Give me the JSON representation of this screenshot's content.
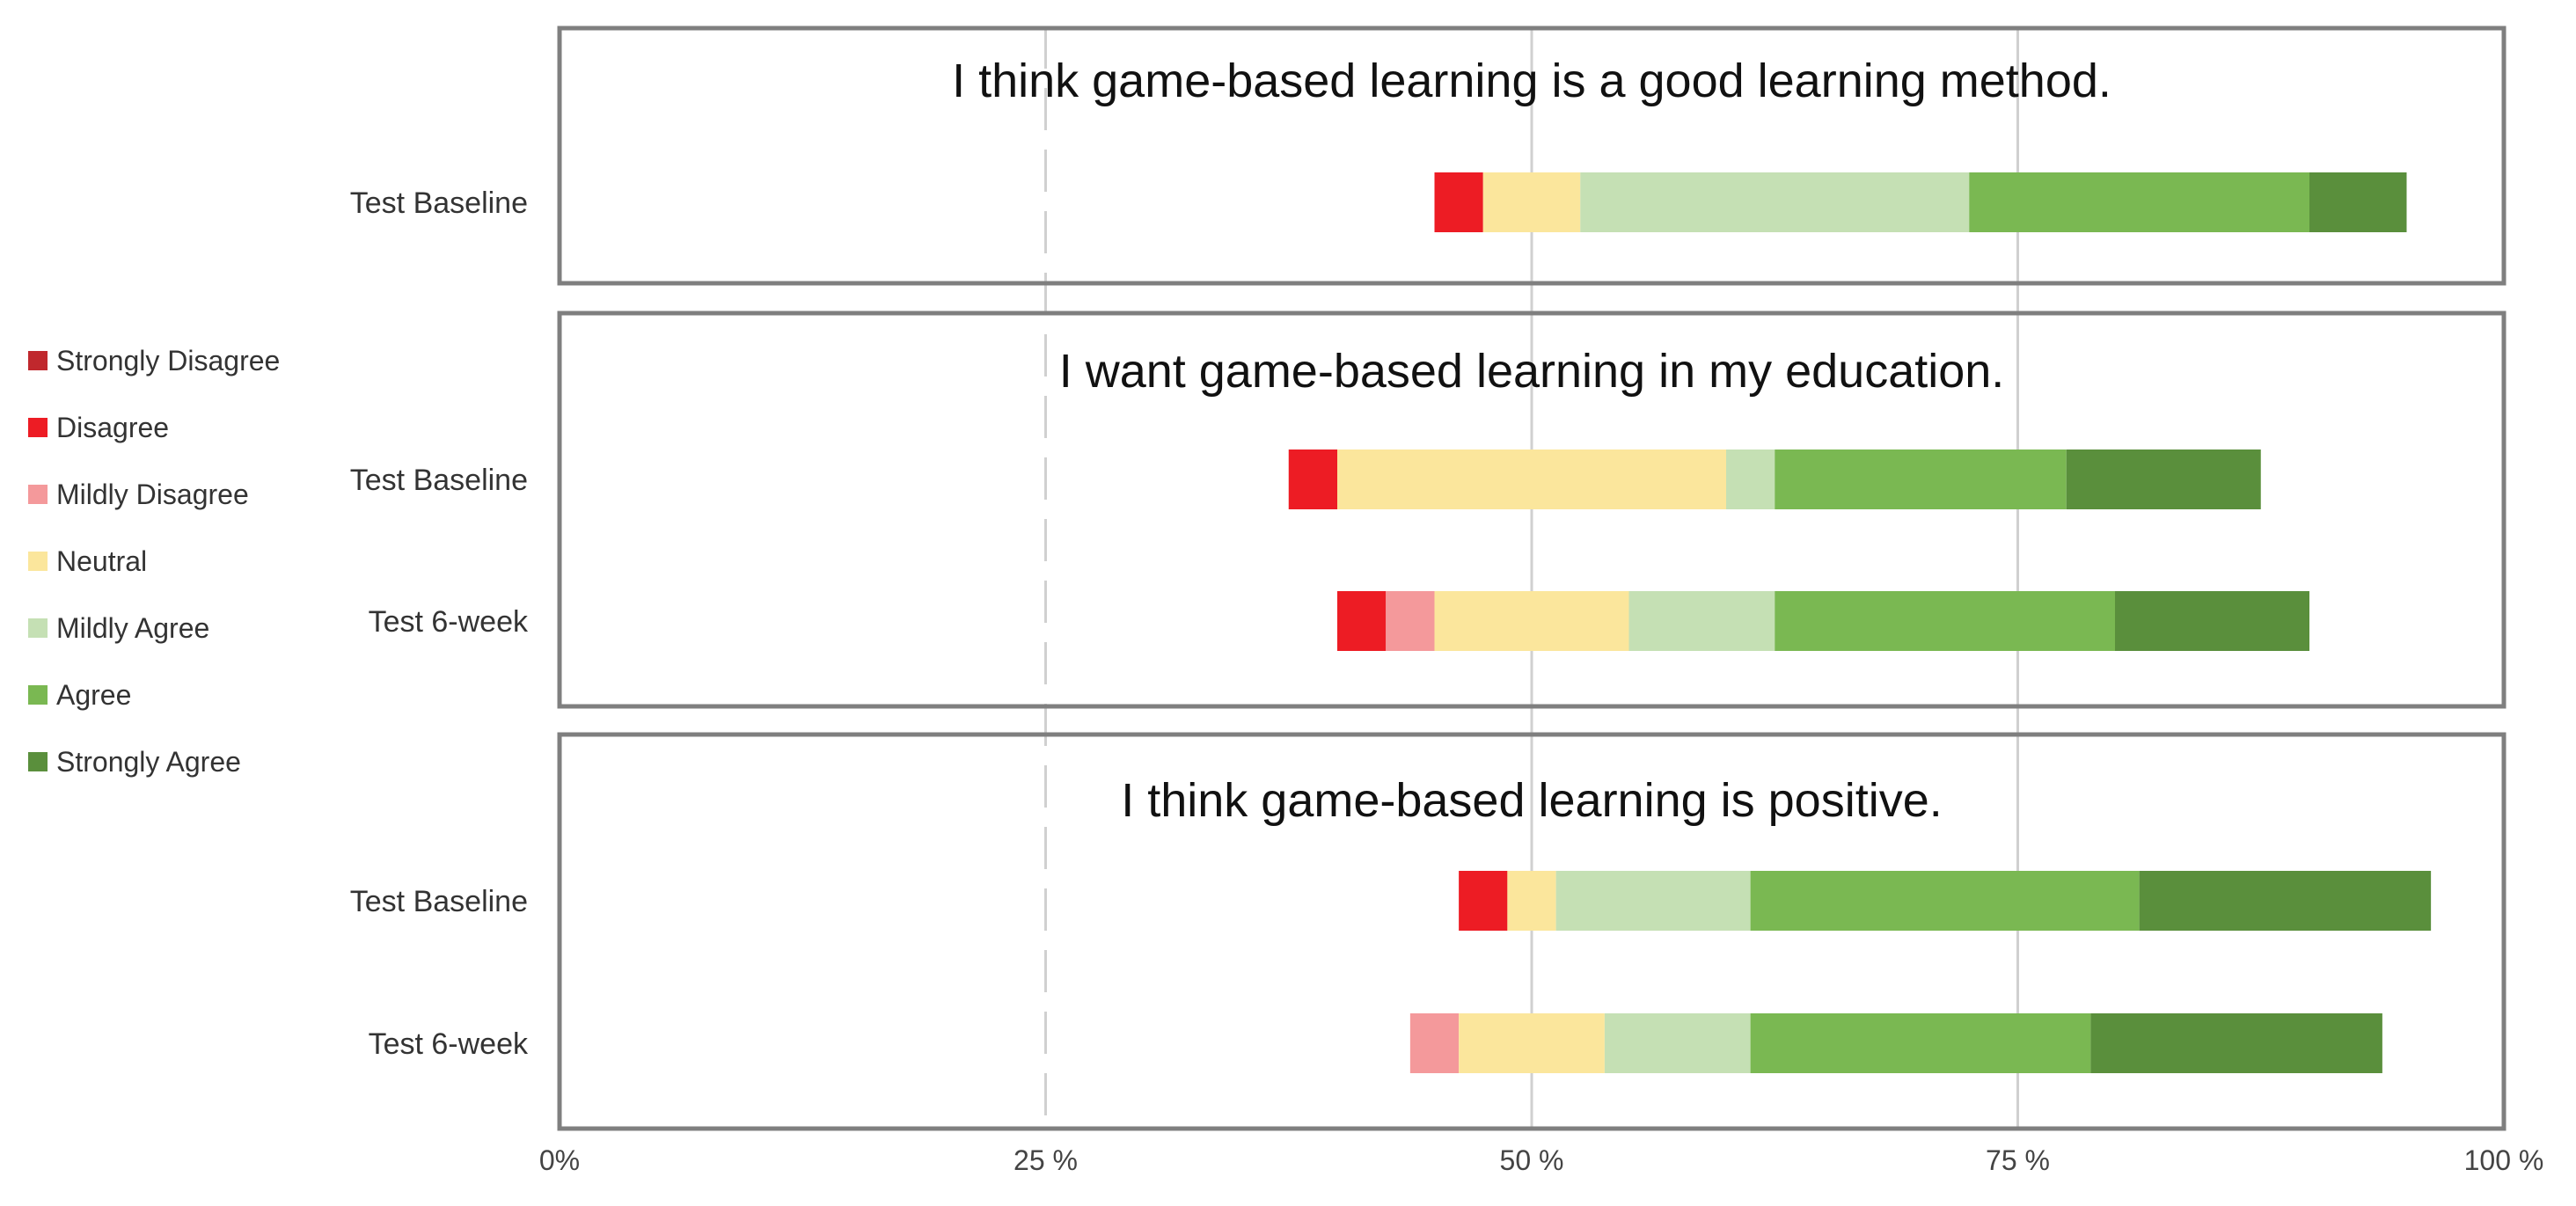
{
  "chart_data": {
    "type": "bar",
    "orientation": "horizontal",
    "stacked": true,
    "x_tick_labels": [
      "0%",
      "25 %",
      "50 %",
      "75 %",
      "100 %"
    ],
    "x_ticks": [
      0,
      25,
      50,
      75,
      100
    ],
    "xlim": [
      0,
      100
    ],
    "grid": true,
    "legend_position": "left",
    "categories_legend": [
      {
        "name": "Strongly Disagree",
        "color": "#c0282d"
      },
      {
        "name": "Disagree",
        "color": "#ed1c24"
      },
      {
        "name": "Mildly Disagree",
        "color": "#f4999b"
      },
      {
        "name": "Neutral",
        "color": "#fbe69c"
      },
      {
        "name": "Mildly Agree",
        "color": "#c5e0b4"
      },
      {
        "name": "Agree",
        "color": "#7ab852"
      },
      {
        "name": "Strongly Agree",
        "color": "#5a8f3c"
      }
    ],
    "panels": [
      {
        "title": "I think game-based learning is a good learning method.",
        "rows": [
          {
            "label": "Test Baseline",
            "start": 45,
            "values": [
              0,
              2.5,
              0,
              5,
              20,
              17.5,
              5
            ]
          }
        ]
      },
      {
        "title": "I want game-based learning in my education.",
        "rows": [
          {
            "label": "Test Baseline",
            "start": 37.5,
            "values": [
              0,
              2.5,
              0,
              20,
              2.5,
              15,
              10
            ]
          },
          {
            "label": "Test 6-week",
            "start": 40,
            "values": [
              0,
              2.5,
              2.5,
              10,
              7.5,
              17.5,
              10
            ]
          }
        ]
      },
      {
        "title": "I think game-based learning is positive.",
        "rows": [
          {
            "label": "Test Baseline",
            "start": 46.25,
            "values": [
              0,
              2.5,
              0,
              2.5,
              10,
              20,
              15
            ]
          },
          {
            "label": "Test 6-week",
            "start": 43.75,
            "values": [
              0,
              0,
              2.5,
              7.5,
              7.5,
              17.5,
              15
            ]
          }
        ]
      }
    ]
  }
}
